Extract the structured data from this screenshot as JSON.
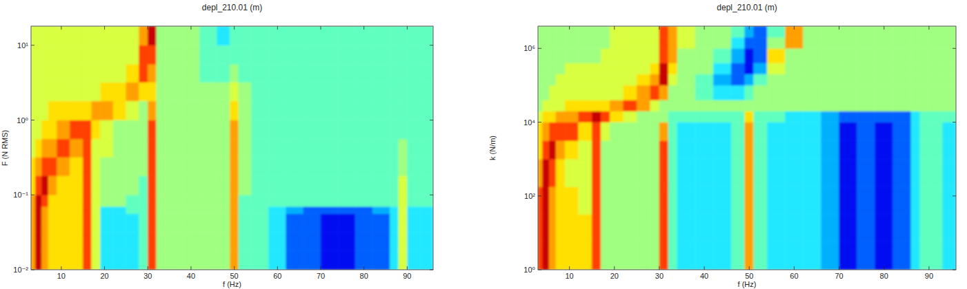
{
  "chart_data": [
    {
      "type": "heatmap",
      "title": "depl_210.01 (m)",
      "xlabel": "f (Hz)",
      "ylabel": "F (N RMS)",
      "log": "y",
      "xlim": [
        3,
        96
      ],
      "ylim": [
        0.01,
        18
      ],
      "zlim": [
        0,
        10
      ],
      "xticks": [
        10,
        20,
        30,
        40,
        50,
        60,
        70,
        80,
        90
      ],
      "yticks": [
        {
          "value": 0.01,
          "label": "10⁻²"
        },
        {
          "value": 0.1,
          "label": "10⁻¹"
        },
        {
          "value": 1,
          "label": "10⁰"
        },
        {
          "value": 10,
          "label": "10¹"
        }
      ],
      "x_edges": [
        3,
        4,
        5.5,
        7,
        9,
        12,
        15,
        17,
        19,
        22,
        25,
        28,
        30,
        32,
        34,
        38,
        42,
        46,
        49,
        51,
        54,
        58,
        62,
        66,
        70,
        74,
        78,
        82,
        86,
        88,
        90,
        93,
        96
      ],
      "y_edges": [
        0.01,
        0.018,
        0.032,
        0.056,
        0.07,
        0.1,
        0.18,
        0.32,
        0.56,
        1,
        1.8,
        3.2,
        5.6,
        10,
        18
      ],
      "values": [
        [
          8,
          10,
          8,
          7,
          7,
          7,
          9,
          6,
          3,
          3,
          3,
          4,
          9,
          5,
          5,
          5,
          5,
          5,
          8,
          4,
          4,
          3,
          1,
          1,
          0,
          0,
          1,
          1,
          3,
          6,
          3,
          3
        ],
        [
          8,
          10,
          8,
          7,
          7,
          7,
          9,
          6,
          3,
          3,
          3,
          4,
          9,
          5,
          5,
          5,
          5,
          5,
          8,
          4,
          4,
          3,
          1,
          1,
          0,
          0,
          1,
          1,
          3,
          6,
          3,
          3
        ],
        [
          8,
          10,
          8,
          7,
          7,
          7,
          9,
          6,
          3,
          3,
          3,
          4,
          9,
          5,
          5,
          5,
          5,
          5,
          8,
          4,
          4,
          3,
          1,
          1,
          0,
          0,
          1,
          1,
          3,
          6,
          3,
          3
        ],
        [
          8,
          10,
          8,
          7,
          7,
          7,
          9,
          6,
          3,
          3,
          4,
          4,
          9,
          5,
          5,
          5,
          5,
          5,
          8,
          4,
          4,
          3,
          2,
          1,
          1,
          1,
          1,
          2,
          3,
          6,
          3,
          3
        ],
        [
          8,
          10,
          9,
          7,
          7,
          7,
          9,
          6,
          5,
          5,
          4,
          4,
          9,
          5,
          5,
          5,
          5,
          5,
          8,
          4,
          4,
          4,
          4,
          4,
          4,
          4,
          4,
          4,
          4,
          6,
          4,
          4
        ],
        [
          7,
          9,
          10,
          8,
          7,
          7,
          9,
          6,
          5,
          5,
          5,
          4,
          9,
          5,
          5,
          5,
          5,
          5,
          8,
          5,
          4,
          4,
          4,
          4,
          4,
          4,
          4,
          4,
          4,
          6,
          4,
          4
        ],
        [
          7,
          8,
          9,
          9,
          8,
          7,
          9,
          6,
          5,
          5,
          5,
          5,
          9,
          5,
          5,
          5,
          5,
          5,
          8,
          5,
          4,
          4,
          4,
          4,
          4,
          4,
          4,
          4,
          4,
          5,
          4,
          4
        ],
        [
          6,
          7,
          8,
          8,
          9,
          8,
          9,
          6,
          6,
          5,
          5,
          5,
          9,
          5,
          5,
          5,
          5,
          5,
          8,
          5,
          4,
          4,
          4,
          4,
          4,
          4,
          4,
          4,
          4,
          5,
          4,
          4
        ],
        [
          6,
          6,
          7,
          7,
          8,
          9,
          9,
          7,
          6,
          5,
          5,
          5,
          9,
          5,
          5,
          5,
          5,
          5,
          8,
          5,
          4,
          4,
          4,
          4,
          4,
          4,
          4,
          4,
          4,
          4,
          4,
          4
        ],
        [
          6,
          6,
          6,
          7,
          7,
          7,
          7,
          8,
          8,
          7,
          6,
          5,
          8,
          5,
          5,
          5,
          5,
          5,
          7,
          5,
          4,
          4,
          4,
          4,
          4,
          4,
          4,
          4,
          4,
          4,
          4,
          4
        ],
        [
          6,
          6,
          6,
          6,
          6,
          6,
          6,
          6,
          7,
          7,
          8,
          7,
          7,
          5,
          5,
          5,
          5,
          5,
          6,
          5,
          4,
          4,
          4,
          4,
          4,
          4,
          4,
          4,
          4,
          4,
          4,
          4
        ],
        [
          6,
          6,
          6,
          6,
          6,
          6,
          6,
          6,
          6,
          6,
          7,
          9,
          8,
          5,
          5,
          5,
          4,
          4,
          5,
          4,
          4,
          4,
          4,
          4,
          4,
          4,
          4,
          4,
          4,
          4,
          4,
          4
        ],
        [
          6,
          6,
          6,
          6,
          6,
          6,
          6,
          6,
          6,
          6,
          6,
          9,
          9,
          5,
          5,
          5,
          4,
          4,
          4,
          4,
          4,
          4,
          4,
          4,
          4,
          4,
          4,
          4,
          4,
          4,
          4,
          4
        ],
        [
          6,
          6,
          6,
          6,
          6,
          6,
          6,
          6,
          6,
          6,
          6,
          8,
          10,
          5,
          5,
          5,
          4,
          3,
          4,
          4,
          4,
          4,
          4,
          4,
          4,
          4,
          4,
          4,
          4,
          4,
          4,
          4
        ]
      ]
    },
    {
      "type": "heatmap",
      "title": "depl_210.01 (m)",
      "xlabel": "f (Hz)",
      "ylabel": "k (N/m)",
      "log": "y",
      "xlim": [
        3,
        96
      ],
      "ylim": [
        1,
        4000000
      ],
      "zlim": [
        0,
        10
      ],
      "xticks": [
        10,
        20,
        30,
        40,
        50,
        60,
        70,
        80,
        90
      ],
      "yticks": [
        {
          "value": 1,
          "label": "10⁰"
        },
        {
          "value": 100,
          "label": "10²"
        },
        {
          "value": 10000,
          "label": "10⁴"
        },
        {
          "value": 1000000,
          "label": "10⁶"
        }
      ],
      "x_edges": [
        3,
        4,
        5.5,
        7,
        9,
        12,
        15,
        17,
        19,
        22,
        25,
        28,
        30,
        32,
        34,
        38,
        42,
        46,
        49,
        51,
        54,
        58,
        62,
        66,
        70,
        74,
        78,
        82,
        86,
        88,
        90,
        93,
        96
      ],
      "y_edges": [
        1,
        5.6,
        32,
        178,
        1000,
        3162,
        10000,
        20000,
        40000,
        100000,
        200000,
        400000,
        1000000,
        2000000,
        4000000
      ],
      "values": [
        [
          9,
          10,
          8,
          7,
          7,
          7,
          9,
          5,
          5,
          5,
          5,
          5,
          9,
          4,
          3,
          3,
          3,
          4,
          8,
          4,
          3,
          3,
          3,
          2,
          0,
          1,
          0,
          1,
          3,
          4,
          4,
          3
        ],
        [
          9,
          10,
          8,
          7,
          7,
          7,
          9,
          5,
          5,
          5,
          5,
          5,
          9,
          4,
          3,
          3,
          3,
          4,
          8,
          4,
          3,
          3,
          3,
          2,
          0,
          1,
          0,
          1,
          3,
          4,
          4,
          3
        ],
        [
          9,
          10,
          8,
          7,
          7,
          6,
          9,
          5,
          5,
          5,
          5,
          5,
          9,
          4,
          3,
          3,
          3,
          4,
          8,
          4,
          3,
          3,
          3,
          2,
          0,
          1,
          0,
          1,
          3,
          4,
          4,
          3
        ],
        [
          8,
          10,
          9,
          7,
          6,
          6,
          9,
          5,
          5,
          5,
          5,
          5,
          9,
          4,
          3,
          3,
          3,
          4,
          8,
          4,
          3,
          3,
          3,
          2,
          0,
          1,
          0,
          1,
          3,
          4,
          4,
          3
        ],
        [
          7,
          9,
          10,
          8,
          7,
          6,
          9,
          5,
          5,
          5,
          5,
          5,
          9,
          4,
          3,
          3,
          3,
          4,
          8,
          4,
          3,
          3,
          3,
          2,
          0,
          1,
          0,
          1,
          3,
          4,
          4,
          3
        ],
        [
          7,
          8,
          9,
          9,
          9,
          7,
          9,
          6,
          5,
          5,
          5,
          5,
          8,
          4,
          3,
          3,
          3,
          4,
          8,
          4,
          3,
          3,
          3,
          2,
          0,
          1,
          0,
          1,
          3,
          4,
          4,
          3
        ],
        [
          6,
          7,
          7,
          8,
          8,
          9,
          10,
          9,
          7,
          6,
          5,
          5,
          5,
          4,
          4,
          4,
          4,
          4,
          7,
          4,
          4,
          3,
          3,
          2,
          1,
          1,
          1,
          1,
          3,
          4,
          4,
          4
        ],
        [
          5,
          6,
          6,
          6,
          7,
          7,
          7,
          7,
          8,
          9,
          8,
          6,
          5,
          5,
          5,
          5,
          5,
          5,
          5,
          5,
          5,
          5,
          5,
          5,
          5,
          5,
          5,
          5,
          5,
          5,
          5,
          5
        ],
        [
          5,
          5,
          6,
          6,
          6,
          6,
          6,
          6,
          6,
          7,
          8,
          9,
          8,
          5,
          5,
          4,
          3,
          3,
          4,
          5,
          5,
          5,
          5,
          5,
          5,
          5,
          5,
          5,
          5,
          5,
          5,
          5
        ],
        [
          5,
          5,
          5,
          6,
          6,
          6,
          6,
          6,
          6,
          6,
          7,
          8,
          10,
          6,
          5,
          4,
          2,
          1,
          2,
          4,
          5,
          5,
          5,
          5,
          5,
          5,
          5,
          5,
          5,
          5,
          5,
          5
        ],
        [
          5,
          5,
          5,
          5,
          6,
          6,
          6,
          6,
          6,
          6,
          6,
          7,
          10,
          7,
          5,
          5,
          3,
          1,
          0,
          2,
          6,
          5,
          5,
          5,
          5,
          5,
          5,
          5,
          5,
          5,
          5,
          5
        ],
        [
          5,
          5,
          5,
          5,
          5,
          5,
          5,
          6,
          6,
          6,
          6,
          6,
          9,
          8,
          5,
          5,
          4,
          2,
          0,
          1,
          7,
          5,
          5,
          5,
          5,
          5,
          5,
          5,
          5,
          5,
          5,
          5
        ],
        [
          5,
          5,
          5,
          5,
          5,
          5,
          5,
          5,
          6,
          6,
          6,
          6,
          9,
          8,
          6,
          5,
          5,
          3,
          1,
          1,
          5,
          8,
          5,
          5,
          5,
          5,
          5,
          5,
          5,
          5,
          5,
          5
        ],
        [
          5,
          5,
          5,
          5,
          5,
          5,
          5,
          5,
          6,
          6,
          6,
          6,
          9,
          8,
          6,
          5,
          5,
          4,
          2,
          1,
          4,
          8,
          5,
          5,
          5,
          5,
          5,
          5,
          5,
          5,
          5,
          5
        ]
      ]
    }
  ]
}
